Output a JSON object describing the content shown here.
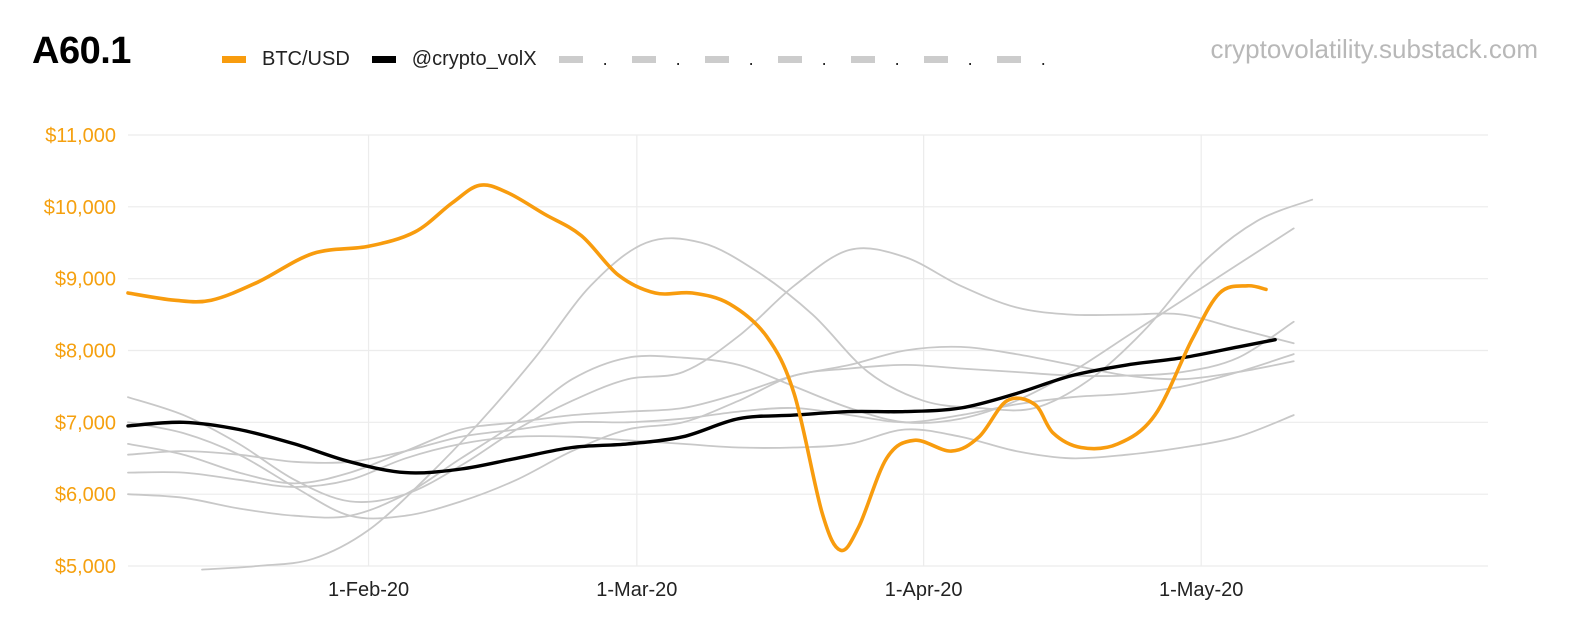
{
  "header": {
    "title": "A60.1",
    "source": "cryptovolatility.substack.com"
  },
  "colors": {
    "btc": "#f89c0e",
    "vol": "#000000",
    "paths": "#c8c8c8",
    "grid": "#ececec",
    "ytick": "#f5a00f"
  },
  "legend": [
    {
      "label": "BTC/USD",
      "color": "#f89c0e",
      "kind": "primary"
    },
    {
      "label": "@crypto_volX",
      "color": "#000000",
      "kind": "primary"
    },
    {
      "label": ".",
      "color": "#cccccc",
      "kind": "path"
    },
    {
      "label": ".",
      "color": "#cccccc",
      "kind": "path"
    },
    {
      "label": ".",
      "color": "#cccccc",
      "kind": "path"
    },
    {
      "label": ".",
      "color": "#cccccc",
      "kind": "path"
    },
    {
      "label": ".",
      "color": "#cccccc",
      "kind": "path"
    },
    {
      "label": ".",
      "color": "#cccccc",
      "kind": "path"
    },
    {
      "label": ".",
      "color": "#cccccc",
      "kind": "path"
    }
  ],
  "chart_data": {
    "type": "line",
    "title": "A60.1",
    "xlabel": "",
    "ylabel": "",
    "ylim": [
      5000,
      11000
    ],
    "xlim": [
      -26,
      121
    ],
    "x_unit": "days since 1-Feb-20",
    "grid": true,
    "legend_position": "top",
    "y_ticks": [
      {
        "value": 5000,
        "label": "$5,000"
      },
      {
        "value": 6000,
        "label": "$6,000"
      },
      {
        "value": 7000,
        "label": "$7,000"
      },
      {
        "value": 8000,
        "label": "$8,000"
      },
      {
        "value": 9000,
        "label": "$9,000"
      },
      {
        "value": 10000,
        "label": "$10,000"
      },
      {
        "value": 11000,
        "label": "$11,000"
      }
    ],
    "x_ticks": [
      {
        "value": 0,
        "label": "1-Feb-20"
      },
      {
        "value": 29,
        "label": "1-Mar-20"
      },
      {
        "value": 60,
        "label": "1-Apr-20"
      },
      {
        "value": 90,
        "label": "1-May-20"
      }
    ],
    "series": [
      {
        "name": "path-1",
        "kind": "path",
        "points": [
          [
            -18,
            4950
          ],
          [
            -12,
            5000
          ],
          [
            -6,
            5100
          ],
          [
            0,
            5500
          ],
          [
            6,
            6200
          ],
          [
            12,
            7000
          ],
          [
            18,
            7900
          ],
          [
            24,
            8900
          ],
          [
            30,
            9500
          ],
          [
            36,
            9500
          ],
          [
            42,
            9100
          ],
          [
            48,
            8500
          ],
          [
            54,
            7700
          ],
          [
            60,
            7300
          ],
          [
            66,
            7200
          ],
          [
            72,
            7200
          ],
          [
            78,
            7600
          ],
          [
            84,
            8300
          ],
          [
            90,
            9200
          ],
          [
            96,
            9800
          ],
          [
            102,
            10100
          ]
        ]
      },
      {
        "name": "path-2",
        "kind": "path",
        "points": [
          [
            -26,
            6000
          ],
          [
            -20,
            5950
          ],
          [
            -14,
            5800
          ],
          [
            -8,
            5700
          ],
          [
            -2,
            5700
          ],
          [
            4,
            6000
          ],
          [
            10,
            6500
          ],
          [
            16,
            7000
          ],
          [
            22,
            7600
          ],
          [
            28,
            7900
          ],
          [
            34,
            7900
          ],
          [
            40,
            7800
          ],
          [
            46,
            7500
          ],
          [
            52,
            7200
          ],
          [
            58,
            7000
          ],
          [
            64,
            7050
          ],
          [
            70,
            7300
          ],
          [
            76,
            7700
          ],
          [
            82,
            8200
          ],
          [
            88,
            8700
          ],
          [
            94,
            9200
          ],
          [
            100,
            9700
          ]
        ]
      },
      {
        "name": "path-3",
        "kind": "path",
        "points": [
          [
            -26,
            7350
          ],
          [
            -20,
            7100
          ],
          [
            -14,
            6700
          ],
          [
            -8,
            6200
          ],
          [
            -2,
            5900
          ],
          [
            4,
            6000
          ],
          [
            10,
            6400
          ],
          [
            16,
            6900
          ],
          [
            22,
            7300
          ],
          [
            28,
            7600
          ],
          [
            34,
            7700
          ],
          [
            40,
            8200
          ],
          [
            46,
            8900
          ],
          [
            52,
            9400
          ],
          [
            58,
            9300
          ],
          [
            64,
            8900
          ],
          [
            70,
            8600
          ],
          [
            76,
            8500
          ],
          [
            82,
            8500
          ],
          [
            88,
            8500
          ],
          [
            94,
            8300
          ],
          [
            100,
            8100
          ]
        ]
      },
      {
        "name": "path-4",
        "kind": "path",
        "points": [
          [
            -26,
            6700
          ],
          [
            -20,
            6550
          ],
          [
            -14,
            6300
          ],
          [
            -8,
            6150
          ],
          [
            -2,
            6300
          ],
          [
            4,
            6600
          ],
          [
            10,
            6900
          ],
          [
            16,
            7000
          ],
          [
            22,
            7100
          ],
          [
            28,
            7150
          ],
          [
            34,
            7200
          ],
          [
            40,
            7400
          ],
          [
            46,
            7650
          ],
          [
            52,
            7800
          ],
          [
            58,
            8000
          ],
          [
            64,
            8050
          ],
          [
            70,
            7950
          ],
          [
            76,
            7800
          ],
          [
            82,
            7650
          ],
          [
            88,
            7600
          ],
          [
            94,
            7700
          ],
          [
            100,
            7850
          ]
        ]
      },
      {
        "name": "path-5",
        "kind": "path",
        "points": [
          [
            -26,
            6300
          ],
          [
            -20,
            6300
          ],
          [
            -14,
            6200
          ],
          [
            -8,
            6100
          ],
          [
            -2,
            6200
          ],
          [
            4,
            6500
          ],
          [
            10,
            6700
          ],
          [
            16,
            6800
          ],
          [
            22,
            6800
          ],
          [
            28,
            6750
          ],
          [
            34,
            6700
          ],
          [
            40,
            6650
          ],
          [
            46,
            6650
          ],
          [
            52,
            6700
          ],
          [
            58,
            6900
          ],
          [
            64,
            6800
          ],
          [
            70,
            6600
          ],
          [
            76,
            6500
          ],
          [
            82,
            6550
          ],
          [
            88,
            6650
          ],
          [
            94,
            6800
          ],
          [
            100,
            7100
          ]
        ]
      },
      {
        "name": "path-6",
        "kind": "path",
        "points": [
          [
            -26,
            6550
          ],
          [
            -20,
            6600
          ],
          [
            -14,
            6550
          ],
          [
            -8,
            6450
          ],
          [
            -2,
            6450
          ],
          [
            4,
            6600
          ],
          [
            10,
            6800
          ],
          [
            16,
            6900
          ],
          [
            22,
            7000
          ],
          [
            28,
            7000
          ],
          [
            34,
            7050
          ],
          [
            40,
            7150
          ],
          [
            46,
            7200
          ],
          [
            52,
            7100
          ],
          [
            58,
            7000
          ],
          [
            64,
            7100
          ],
          [
            70,
            7250
          ],
          [
            76,
            7350
          ],
          [
            82,
            7400
          ],
          [
            88,
            7500
          ],
          [
            94,
            7700
          ],
          [
            100,
            7950
          ]
        ]
      },
      {
        "name": "path-7",
        "kind": "path",
        "points": [
          [
            -26,
            7000
          ],
          [
            -20,
            6850
          ],
          [
            -14,
            6550
          ],
          [
            -8,
            6100
          ],
          [
            -2,
            5700
          ],
          [
            4,
            5700
          ],
          [
            10,
            5900
          ],
          [
            16,
            6200
          ],
          [
            22,
            6600
          ],
          [
            28,
            6900
          ],
          [
            34,
            7000
          ],
          [
            40,
            7300
          ],
          [
            46,
            7650
          ],
          [
            52,
            7750
          ],
          [
            58,
            7800
          ],
          [
            64,
            7750
          ],
          [
            70,
            7700
          ],
          [
            76,
            7650
          ],
          [
            82,
            7650
          ],
          [
            88,
            7700
          ],
          [
            94,
            7900
          ],
          [
            100,
            8400
          ]
        ]
      },
      {
        "name": "@crypto_volX",
        "kind": "primary",
        "points": [
          [
            -26,
            6950
          ],
          [
            -20,
            7000
          ],
          [
            -14,
            6900
          ],
          [
            -8,
            6700
          ],
          [
            -2,
            6450
          ],
          [
            4,
            6300
          ],
          [
            10,
            6350
          ],
          [
            16,
            6500
          ],
          [
            22,
            6650
          ],
          [
            28,
            6700
          ],
          [
            34,
            6800
          ],
          [
            40,
            7050
          ],
          [
            46,
            7100
          ],
          [
            52,
            7150
          ],
          [
            58,
            7150
          ],
          [
            64,
            7200
          ],
          [
            70,
            7400
          ],
          [
            76,
            7650
          ],
          [
            82,
            7800
          ],
          [
            88,
            7900
          ],
          [
            94,
            8050
          ],
          [
            98,
            8150
          ]
        ]
      },
      {
        "name": "BTC/USD",
        "kind": "primary",
        "points": [
          [
            -26,
            8800
          ],
          [
            -21,
            8700
          ],
          [
            -17,
            8700
          ],
          [
            -12,
            8950
          ],
          [
            -6,
            9350
          ],
          [
            0,
            9450
          ],
          [
            5,
            9650
          ],
          [
            9,
            10050
          ],
          [
            12,
            10300
          ],
          [
            15,
            10200
          ],
          [
            19,
            9900
          ],
          [
            23,
            9600
          ],
          [
            27,
            9050
          ],
          [
            31,
            8800
          ],
          [
            35,
            8800
          ],
          [
            39,
            8650
          ],
          [
            43,
            8200
          ],
          [
            46,
            7400
          ],
          [
            49,
            5750
          ],
          [
            51,
            5220
          ],
          [
            53,
            5550
          ],
          [
            56,
            6500
          ],
          [
            59,
            6750
          ],
          [
            63,
            6600
          ],
          [
            66,
            6800
          ],
          [
            69,
            7300
          ],
          [
            72,
            7250
          ],
          [
            74,
            6850
          ],
          [
            77,
            6650
          ],
          [
            81,
            6700
          ],
          [
            85,
            7100
          ],
          [
            89,
            8150
          ],
          [
            92,
            8800
          ],
          [
            95,
            8900
          ],
          [
            97,
            8850
          ]
        ]
      }
    ]
  }
}
